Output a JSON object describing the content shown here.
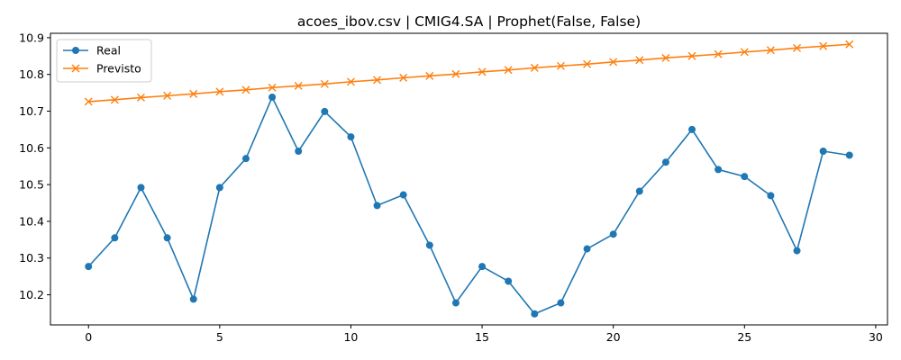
{
  "chart_data": {
    "type": "line",
    "title": "acoes_ibov.csv | CMIG4.SA | Prophet(False, False)",
    "xlabel": "",
    "ylabel": "",
    "xlim": [
      -1.45,
      30.45
    ],
    "ylim": [
      10.118,
      10.912
    ],
    "x_ticks": [
      0,
      5,
      10,
      15,
      20,
      25,
      30
    ],
    "y_ticks": [
      10.2,
      10.3,
      10.4,
      10.5,
      10.6,
      10.7,
      10.8,
      10.9
    ],
    "x_tick_labels": [
      "0",
      "5",
      "10",
      "15",
      "20",
      "25",
      "30"
    ],
    "y_tick_labels": [
      "10.2",
      "10.3",
      "10.4",
      "10.5",
      "10.6",
      "10.7",
      "10.8",
      "10.9"
    ],
    "grid": false,
    "legend_position": "upper-left",
    "x": [
      0,
      1,
      2,
      3,
      4,
      5,
      6,
      7,
      8,
      9,
      10,
      11,
      12,
      13,
      14,
      15,
      16,
      17,
      18,
      19,
      20,
      21,
      22,
      23,
      24,
      25,
      26,
      27,
      28,
      29
    ],
    "series": [
      {
        "name": "Real",
        "color": "#1f77b4",
        "marker": "circle",
        "values": [
          10.277,
          10.355,
          10.492,
          10.355,
          10.188,
          10.492,
          10.571,
          10.738,
          10.591,
          10.699,
          10.63,
          10.443,
          10.472,
          10.335,
          10.178,
          10.277,
          10.237,
          10.148,
          10.178,
          10.325,
          10.365,
          10.482,
          10.561,
          10.65,
          10.541,
          10.522,
          10.47,
          10.32,
          10.591,
          10.58
        ]
      },
      {
        "name": "Previsto",
        "color": "#ff7f0e",
        "marker": "x",
        "values": [
          10.726,
          10.731,
          10.737,
          10.742,
          10.747,
          10.753,
          10.758,
          10.764,
          10.769,
          10.774,
          10.78,
          10.785,
          10.791,
          10.796,
          10.801,
          10.807,
          10.812,
          10.818,
          10.823,
          10.828,
          10.834,
          10.839,
          10.845,
          10.85,
          10.855,
          10.861,
          10.866,
          10.872,
          10.877,
          10.882
        ]
      }
    ]
  }
}
